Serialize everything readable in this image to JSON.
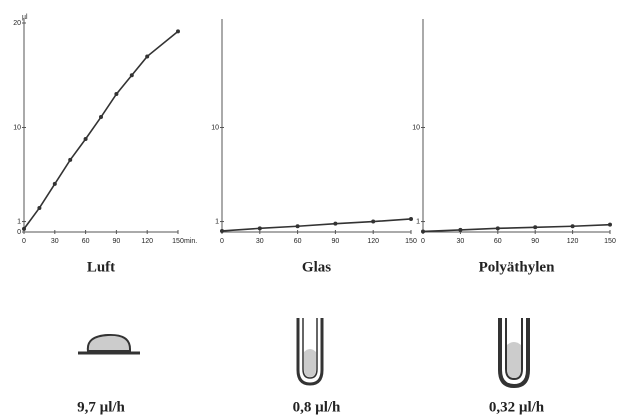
{
  "chart_data": [
    {
      "type": "line",
      "title": "Luft",
      "annotation": "9,7 µl/h",
      "xlabel": "min.",
      "ylabel": "µl",
      "x": [
        0,
        15,
        30,
        45,
        60,
        75,
        90,
        105,
        120,
        150
      ],
      "series": [
        {
          "color": "#333333",
          "values": [
            0.3,
            2.3,
            4.6,
            6.9,
            8.9,
            11.0,
            13.2,
            15.0,
            16.8,
            19.2
          ]
        }
      ],
      "xlim": [
        0,
        150
      ],
      "ylim": [
        0,
        20
      ],
      "xticks": [
        0,
        30,
        60,
        90,
        120,
        150
      ],
      "yticks": [
        0,
        1,
        10,
        20
      ]
    },
    {
      "type": "line",
      "title": "Glas",
      "annotation": "0,8 µl/h",
      "x": [
        0,
        30,
        60,
        90,
        120,
        150
      ],
      "series": [
        {
          "color": "#333333",
          "values": [
            0.1,
            0.35,
            0.55,
            0.8,
            1.0,
            1.25
          ]
        }
      ],
      "xlim": [
        0,
        150
      ],
      "ylim": [
        0,
        20
      ],
      "xticks": [
        0,
        30,
        60,
        90,
        120,
        150
      ],
      "yticks": [
        1,
        10
      ]
    },
    {
      "type": "line",
      "title": "Polyäthylen",
      "annotation": "0,32 µl/h",
      "x": [
        0,
        30,
        60,
        90,
        120,
        150
      ],
      "series": [
        {
          "color": "#333333",
          "values": [
            0.05,
            0.2,
            0.35,
            0.45,
            0.55,
            0.7
          ]
        }
      ],
      "xlim": [
        0,
        150
      ],
      "ylim": [
        0,
        20
      ],
      "xticks": [
        0,
        30,
        60,
        90,
        120,
        150
      ],
      "yticks": [
        1,
        10
      ]
    }
  ]
}
